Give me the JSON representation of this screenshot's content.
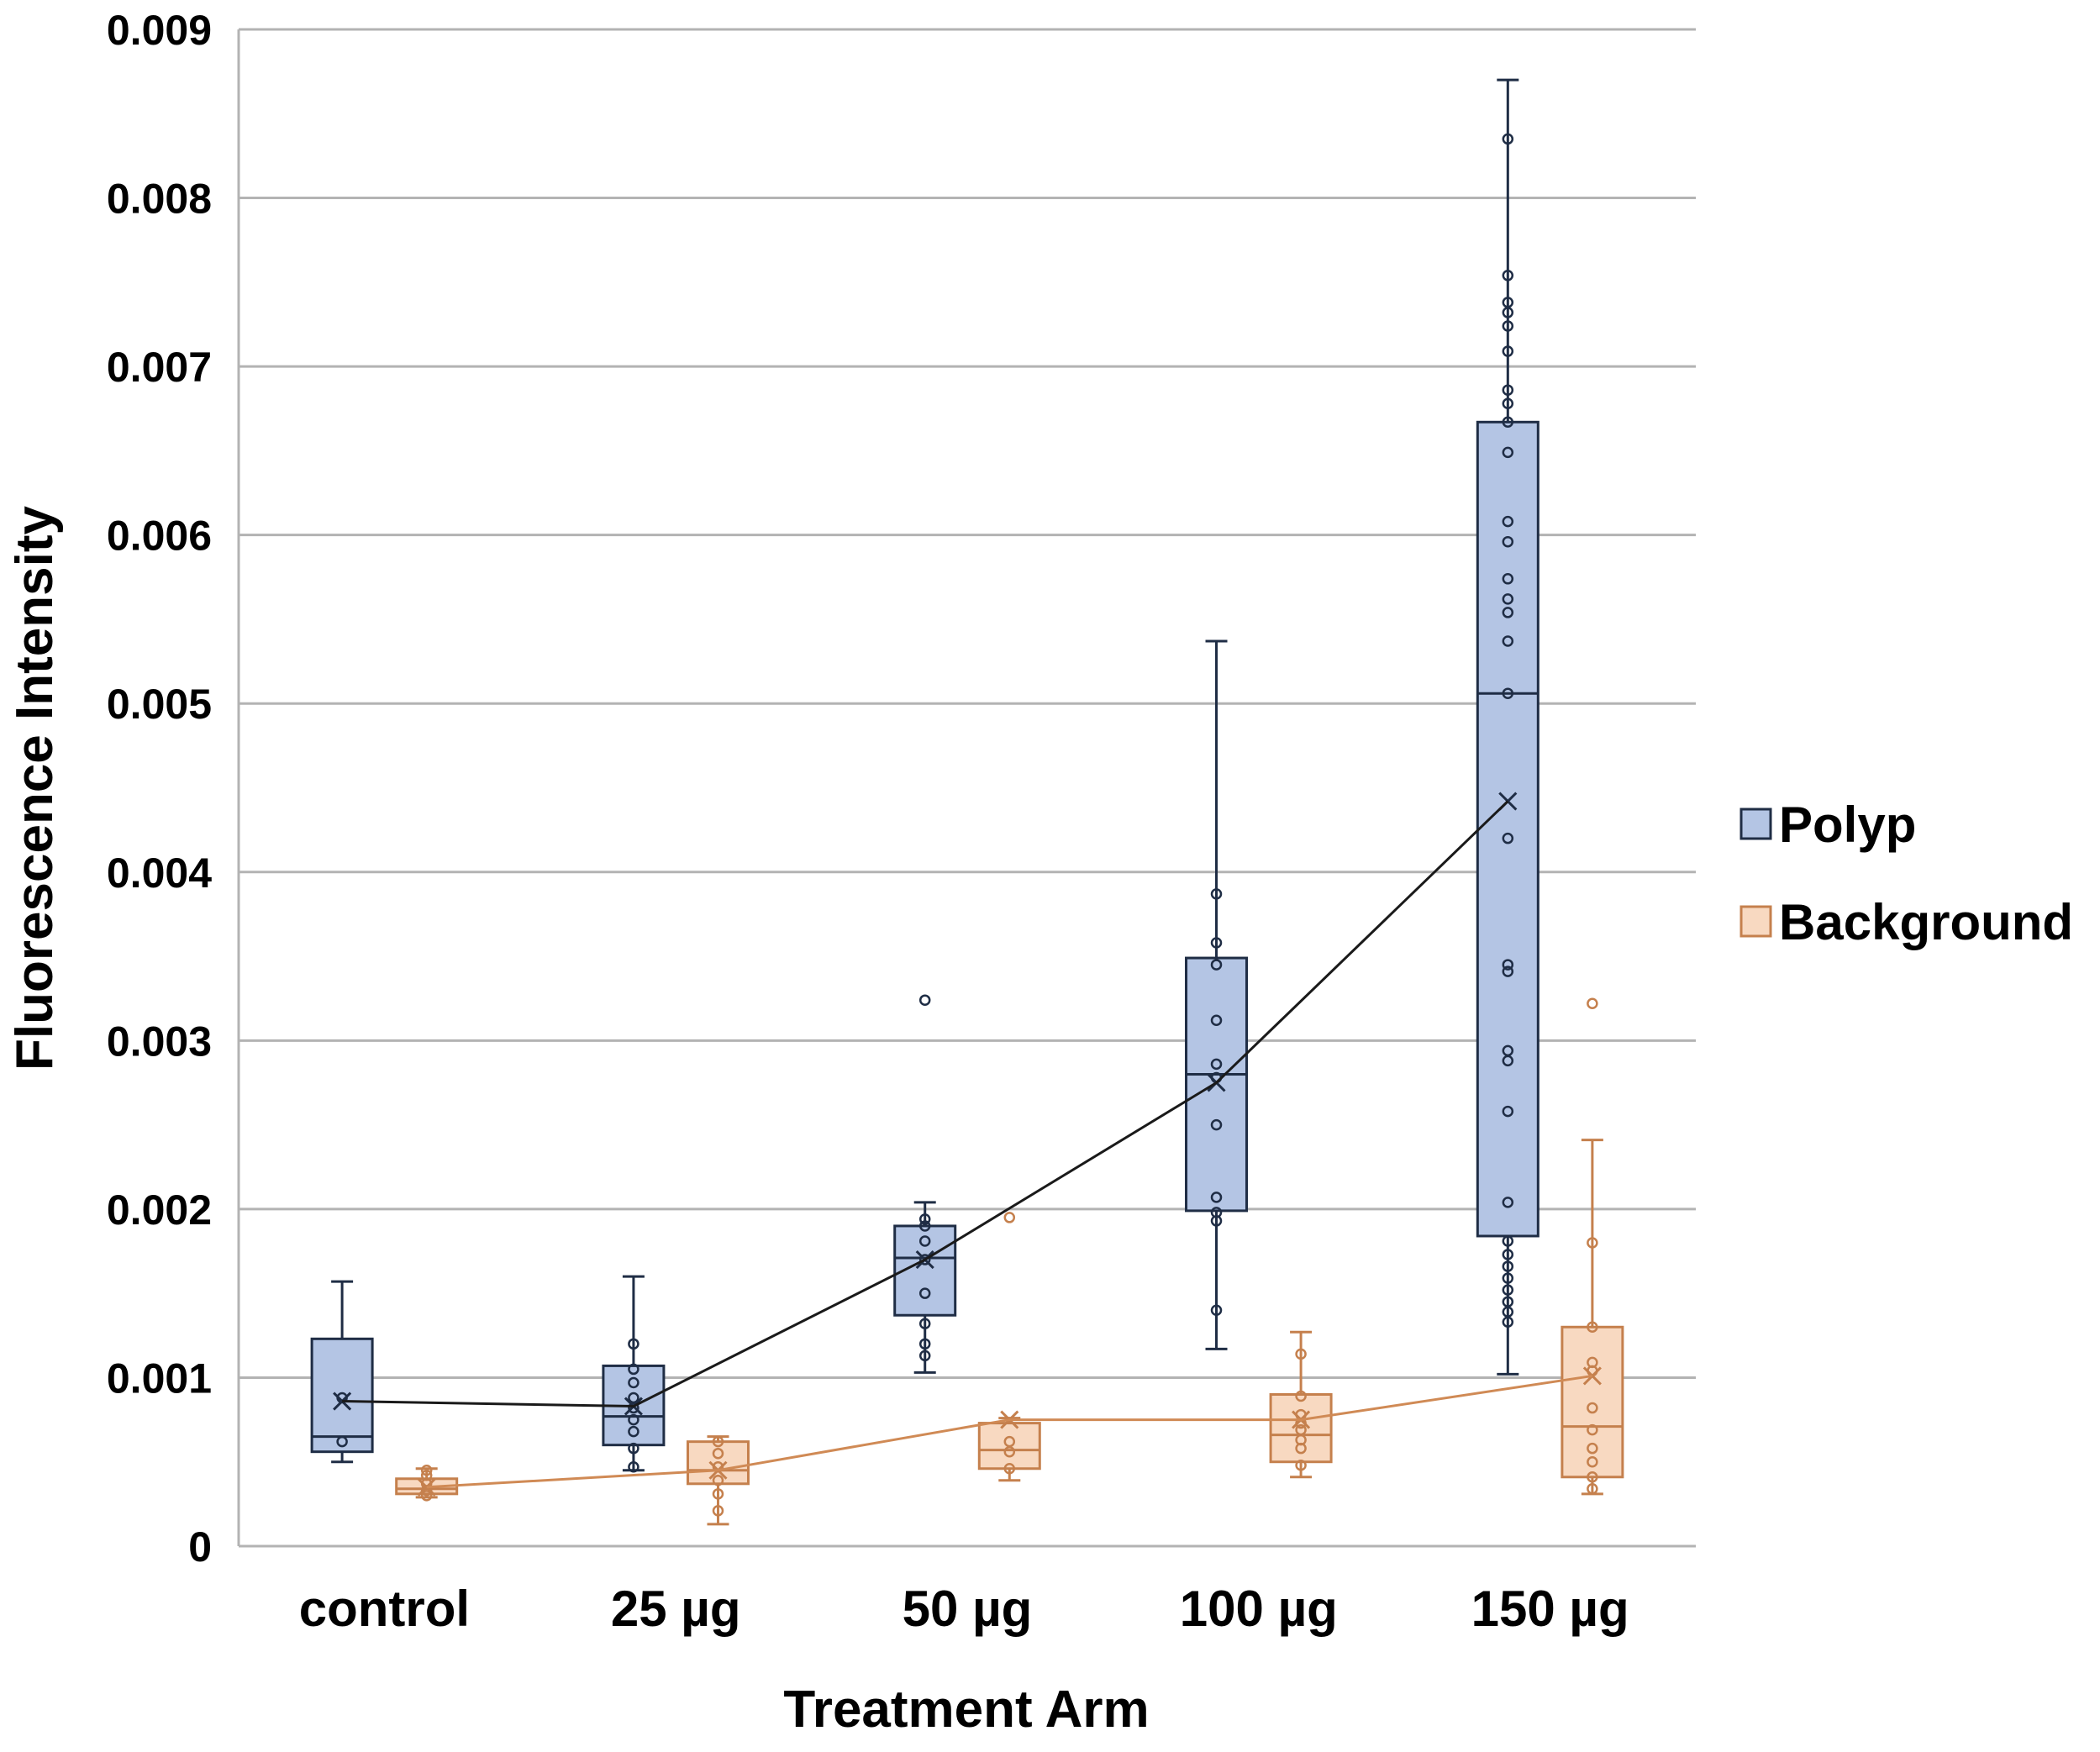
{
  "chart_data": {
    "type": "box",
    "title": "",
    "xlabel": "Treatment Arm",
    "ylabel": "Fluorescence Intensity",
    "ylim": [
      0,
      0.009
    ],
    "yticks": [
      "0",
      "0.001",
      "0.002",
      "0.003",
      "0.004",
      "0.005",
      "0.006",
      "0.007",
      "0.008",
      "0.009"
    ],
    "grid": true,
    "legend_position": "right",
    "categories": [
      "control",
      "25 µg",
      "50 µg",
      "100 µg",
      "150 µg"
    ],
    "series": [
      {
        "name": "Polyp",
        "fill": "#b4c5e4",
        "stroke": "#1f2d45",
        "mean_line_color": "#1a1a1a",
        "boxes": [
          {
            "min": 0.0005,
            "q1": 0.00056,
            "median": 0.00065,
            "q3": 0.00123,
            "max": 0.00157,
            "mean": 0.00086,
            "points": [
              0.00062,
              0.00088
            ]
          },
          {
            "min": 0.00045,
            "q1": 0.0006,
            "median": 0.00077,
            "q3": 0.00107,
            "max": 0.0016,
            "mean": 0.00083,
            "points": [
              0.00047,
              0.00058,
              0.00068,
              0.00075,
              0.00082,
              0.00088,
              0.00097,
              0.00105,
              0.0012
            ]
          },
          {
            "min": 0.00103,
            "q1": 0.00137,
            "median": 0.00171,
            "q3": 0.0019,
            "max": 0.00204,
            "mean": 0.0017,
            "points": [
              0.00113,
              0.0012,
              0.00132,
              0.0015,
              0.0017,
              0.00181,
              0.0019,
              0.00194,
              0.00324
            ]
          },
          {
            "min": 0.00117,
            "q1": 0.00199,
            "median": 0.0028,
            "q3": 0.00349,
            "max": 0.00537,
            "mean": 0.00275,
            "points": [
              0.0014,
              0.00193,
              0.00198,
              0.00207,
              0.0025,
              0.00278,
              0.00286,
              0.00312,
              0.00345,
              0.00358,
              0.00387
            ]
          },
          {
            "min": 0.00102,
            "q1": 0.00184,
            "median": 0.00506,
            "q3": 0.00667,
            "max": 0.0087,
            "mean": 0.00442,
            "points": [
              0.00133,
              0.00139,
              0.00145,
              0.00152,
              0.00159,
              0.00166,
              0.00173,
              0.00181,
              0.00204,
              0.00258,
              0.00288,
              0.00294,
              0.00341,
              0.00345,
              0.0042,
              0.00506,
              0.00537,
              0.00554,
              0.00562,
              0.00574,
              0.00596,
              0.00608,
              0.00649,
              0.00667,
              0.00678,
              0.00686,
              0.00709,
              0.00724,
              0.00732,
              0.00738,
              0.00754,
              0.00835
            ]
          }
        ]
      },
      {
        "name": "Background",
        "fill": "#f8d9c1",
        "stroke": "#c5804d",
        "mean_line_color": "#d08a55",
        "boxes": [
          {
            "min": 0.00029,
            "q1": 0.00031,
            "median": 0.00034,
            "q3": 0.0004,
            "max": 0.00046,
            "mean": 0.00035,
            "points": [
              0.0003,
              0.00033,
              0.00037,
              0.00042,
              0.00045
            ]
          },
          {
            "min": 0.00013,
            "q1": 0.00037,
            "median": 0.00045,
            "q3": 0.00062,
            "max": 0.00065,
            "mean": 0.00045,
            "points": [
              0.00021,
              0.00031,
              0.00039,
              0.00047,
              0.00055,
              0.00062
            ]
          },
          {
            "min": 0.00039,
            "q1": 0.00046,
            "median": 0.00057,
            "q3": 0.00073,
            "max": 0.00076,
            "mean": 0.00075,
            "points": [
              0.00046,
              0.00056,
              0.00062,
              0.00195
            ]
          },
          {
            "min": 0.00041,
            "q1": 0.0005,
            "median": 0.00066,
            "q3": 0.0009,
            "max": 0.00127,
            "mean": 0.00075,
            "points": [
              0.00048,
              0.00058,
              0.00063,
              0.00069,
              0.00073,
              0.00078,
              0.00089,
              0.00114
            ]
          },
          {
            "min": 0.00031,
            "q1": 0.00041,
            "median": 0.00071,
            "q3": 0.0013,
            "max": 0.00241,
            "mean": 0.00101,
            "points": [
              0.00034,
              0.00041,
              0.0005,
              0.00058,
              0.00069,
              0.00082,
              0.00104,
              0.00109,
              0.0013,
              0.0018,
              0.00322
            ]
          }
        ]
      }
    ]
  }
}
